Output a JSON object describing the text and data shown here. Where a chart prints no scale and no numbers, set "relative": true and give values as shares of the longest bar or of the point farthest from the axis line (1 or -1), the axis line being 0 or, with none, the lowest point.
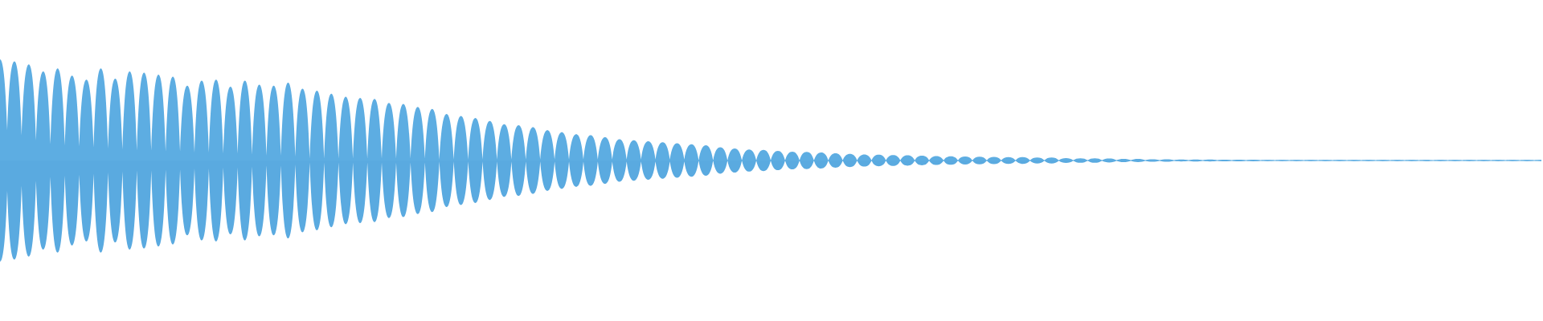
{
  "chart_data": {
    "type": "area",
    "relative": true,
    "categories": [
      null,
      null,
      null,
      null,
      null,
      null,
      null,
      null,
      null,
      null,
      null,
      null,
      null,
      null,
      null,
      null,
      null,
      null,
      null,
      null,
      null,
      null,
      null,
      null,
      null,
      null,
      null,
      null,
      null,
      null,
      null,
      null,
      null,
      null,
      null,
      null,
      null,
      null,
      null,
      null,
      null,
      null,
      null,
      null,
      null,
      null,
      null,
      null,
      null,
      null,
      null,
      null,
      null,
      null,
      null,
      null,
      null,
      null,
      null,
      null,
      null,
      null,
      null,
      null,
      null,
      null,
      null,
      null,
      null,
      null,
      null,
      null,
      null,
      null,
      null,
      null,
      null,
      null,
      null,
      null,
      null,
      null,
      null,
      null,
      null,
      null,
      null,
      null,
      null,
      null,
      null,
      null,
      null,
      null,
      null,
      null,
      null,
      null,
      null,
      null,
      null,
      null,
      null,
      null,
      null,
      null,
      null,
      null,
      null,
      null,
      null,
      null,
      null,
      null,
      null,
      null,
      null,
      null,
      null,
      null,
      null,
      null,
      null,
      null,
      null,
      null,
      null,
      null,
      null,
      null,
      null,
      null,
      null,
      null,
      null,
      null,
      null,
      null,
      null,
      null,
      null,
      null,
      null,
      null,
      null,
      null,
      null,
      null,
      null,
      null,
      null,
      null,
      null,
      null,
      null,
      null,
      null,
      null,
      null,
      null,
      null,
      null,
      null,
      null,
      null,
      null,
      null,
      null,
      null,
      null,
      null,
      null,
      null,
      null,
      null,
      null,
      null,
      null,
      null,
      null,
      null,
      null,
      null,
      null,
      null,
      null,
      null,
      null,
      null,
      null,
      null,
      null,
      null,
      null,
      null,
      null,
      null,
      null,
      null,
      null,
      null,
      null,
      null,
      null,
      null,
      null,
      null,
      null,
      null,
      null,
      null,
      null,
      null,
      null,
      null
    ],
    "series": [
      {
        "color": "#5dade2",
        "values": [
          1.0,
          0.3,
          0.98,
          0.25,
          0.95,
          0.2,
          0.88,
          0.16,
          0.91,
          0.15,
          0.84,
          0.14,
          0.8,
          0.13,
          0.91,
          0.12,
          0.81,
          0.11,
          0.88,
          0.1,
          0.87,
          0.1,
          0.85,
          0.09,
          0.83,
          0.09,
          0.74,
          0.08,
          0.79,
          0.08,
          0.8,
          0.07,
          0.73,
          0.07,
          0.79,
          0.06,
          0.75,
          0.05,
          0.74,
          0.05,
          0.77,
          0.04,
          0.71,
          0.02,
          0.69,
          0.02,
          0.66,
          0.02,
          0.63,
          0.02,
          0.62,
          0.02,
          0.61,
          0.02,
          0.57,
          0.02,
          0.56,
          0.02,
          0.53,
          0.02,
          0.51,
          0.01,
          0.46,
          0.01,
          0.44,
          0.01,
          0.42,
          0.01,
          0.39,
          0.01,
          0.36,
          0.01,
          0.35,
          0.01,
          0.33,
          0.01,
          0.3,
          0.01,
          0.28,
          0.01,
          0.26,
          0.01,
          0.25,
          0.01,
          0.23,
          0.01,
          0.21,
          0.01,
          0.2,
          0.01,
          0.19,
          0.01,
          0.18,
          0.01,
          0.17,
          0.01,
          0.16,
          0,
          0.15,
          0,
          0.13,
          0,
          0.12,
          0,
          0.11,
          0,
          0.105,
          0,
          0.096,
          0,
          0.088,
          0,
          0.085,
          0,
          0.079,
          0,
          0.071,
          0,
          0.065,
          0,
          0.06,
          0,
          0.057,
          0,
          0.054,
          0,
          0.051,
          0,
          0.047,
          0,
          0.044,
          0,
          0.042,
          0,
          0.039,
          0,
          0.037,
          0,
          0.035,
          0,
          0.034,
          0,
          0.033,
          0,
          0.029,
          0,
          0.029,
          0,
          0.024,
          0,
          0.022,
          0,
          0.022,
          0,
          0.019,
          0,
          0.016,
          0,
          0.015,
          0,
          0.012,
          0,
          0.012,
          0,
          0.009,
          0,
          0.01,
          0,
          0.009,
          0,
          0.008,
          0,
          0.008,
          0,
          0.007,
          0,
          0.005,
          0,
          0.005,
          0,
          0.005,
          0,
          0.005,
          0,
          0.005,
          0,
          0.005,
          0,
          0.005,
          0,
          0.005,
          0,
          0.005,
          0,
          0.005,
          0,
          0.005,
          0,
          0.005,
          0,
          0.005,
          0,
          0.005,
          0,
          0.005,
          0,
          0.005,
          0,
          0.005,
          0,
          0.005,
          0,
          0.005,
          0,
          0.005
        ]
      },
      {
        "color": "#5aaae0",
        "values": [
          -1.0,
          -0.3,
          -0.98,
          -0.25,
          -0.95,
          -0.2,
          -0.88,
          -0.16,
          -0.91,
          -0.15,
          -0.84,
          -0.14,
          -0.8,
          -0.13,
          -0.91,
          -0.12,
          -0.81,
          -0.11,
          -0.88,
          -0.1,
          -0.87,
          -0.1,
          -0.85,
          -0.09,
          -0.83,
          -0.09,
          -0.74,
          -0.08,
          -0.79,
          -0.08,
          -0.8,
          -0.07,
          -0.73,
          -0.07,
          -0.79,
          -0.06,
          -0.75,
          -0.05,
          -0.74,
          -0.05,
          -0.77,
          -0.04,
          -0.71,
          -0.02,
          -0.69,
          -0.02,
          -0.66,
          -0.02,
          -0.63,
          -0.02,
          -0.62,
          -0.02,
          -0.61,
          -0.02,
          -0.57,
          -0.02,
          -0.56,
          -0.02,
          -0.53,
          -0.02,
          -0.51,
          -0.01,
          -0.46,
          -0.01,
          -0.44,
          -0.01,
          -0.42,
          -0.01,
          -0.39,
          -0.01,
          -0.36,
          -0.01,
          -0.35,
          -0.01,
          -0.33,
          -0.01,
          -0.3,
          -0.01,
          -0.28,
          -0.01,
          -0.26,
          -0.01,
          -0.25,
          -0.01,
          -0.23,
          -0.01,
          -0.21,
          -0.01,
          -0.2,
          -0.01,
          -0.19,
          -0.01,
          -0.18,
          -0.01,
          -0.17,
          -0.01,
          -0.16,
          0,
          -0.15,
          0,
          -0.13,
          0,
          -0.12,
          0,
          -0.11,
          0,
          -0.105,
          0,
          -0.096,
          0,
          -0.088,
          0,
          -0.085,
          0,
          -0.079,
          0,
          -0.071,
          0,
          -0.065,
          0,
          -0.06,
          0,
          -0.057,
          0,
          -0.054,
          0,
          -0.051,
          0,
          -0.047,
          0,
          -0.044,
          0,
          -0.042,
          0,
          -0.039,
          0,
          -0.037,
          0,
          -0.035,
          0,
          -0.034,
          0,
          -0.033,
          0,
          -0.029,
          0,
          -0.029,
          0,
          -0.024,
          0,
          -0.022,
          0,
          -0.022,
          0,
          -0.019,
          0,
          -0.016,
          0,
          -0.015,
          0,
          -0.012,
          0,
          -0.012,
          0,
          -0.009,
          0,
          -0.01,
          0,
          -0.009,
          0,
          -0.008,
          0,
          -0.008,
          0,
          -0.007,
          0,
          -0.005,
          0,
          -0.005,
          0,
          -0.005,
          0,
          -0.005,
          0,
          -0.005,
          0,
          -0.005,
          0,
          -0.005,
          0,
          -0.005,
          0,
          -0.005,
          0,
          -0.005,
          0,
          -0.005,
          0,
          -0.005,
          0,
          -0.005,
          0,
          -0.005,
          0,
          -0.005,
          0,
          -0.005,
          0,
          -0.005,
          0,
          -0.005,
          0,
          -0.005,
          0,
          -0.005
        ]
      }
    ],
    "ref_lines": [
      {
        "axis": "y",
        "value": 0,
        "color": "#5dade2"
      }
    ]
  }
}
